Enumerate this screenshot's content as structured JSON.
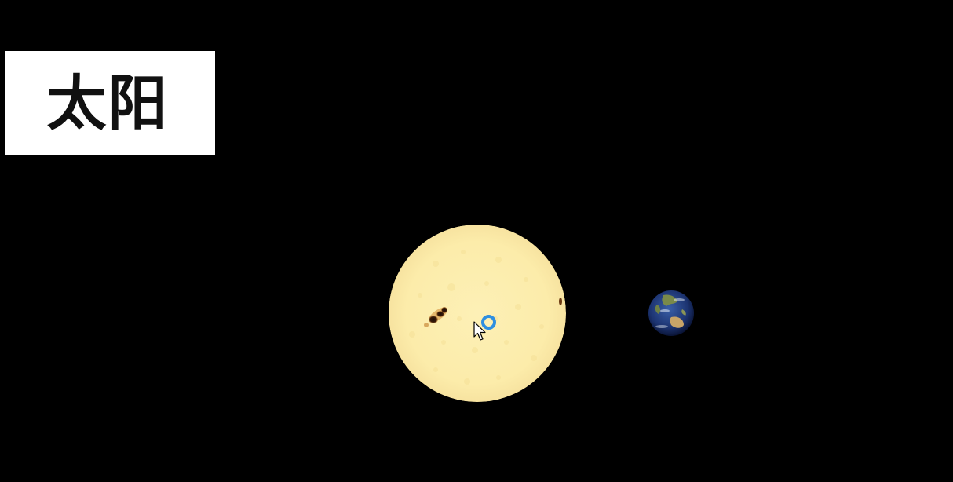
{
  "scene": {
    "label": "太阳",
    "background_color": "#000000",
    "sun_color": "#fcefb0",
    "sunspot_color": "#1a0d05",
    "click_indicator_color": "#2f8fe0"
  },
  "icons": {
    "sun": "sun-icon",
    "earth": "earth-icon",
    "cursor": "mouse-pointer-icon",
    "click_indicator": "click-ring-icon"
  }
}
